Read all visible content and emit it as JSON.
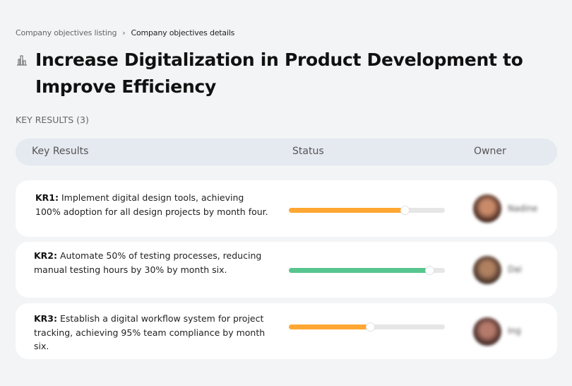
{
  "breadcrumb": {
    "items": [
      "Company objectives listing",
      "Company objectives details"
    ],
    "separator": "›"
  },
  "page": {
    "icon": "building-chart-icon",
    "title": "Increase Digitalization in Product Development to Improve Efficiency"
  },
  "key_results_label": "KEY RESULTS (3)",
  "table": {
    "headers": {
      "kr": "Key Results",
      "status": "Status",
      "owner": "Owner"
    }
  },
  "rows": [
    {
      "id": "KR1:",
      "text": " Implement digital design tools, achieving 100% adoption for all design projects by month four.",
      "progress": 0.74,
      "color": "#ffa733",
      "owner": "Nadine"
    },
    {
      "id": "KR2:",
      "text": " Automate 50% of testing processes, reducing manual testing hours by 30% by month six.",
      "progress": 0.9,
      "color": "#57c58e",
      "owner": "Dai"
    },
    {
      "id": "KR3:",
      "text": " Establish a digital workflow system for project tracking, achieving 95% team compliance by month six.",
      "progress": 0.52,
      "color": "#ffa733",
      "owner": "Ing"
    }
  ]
}
